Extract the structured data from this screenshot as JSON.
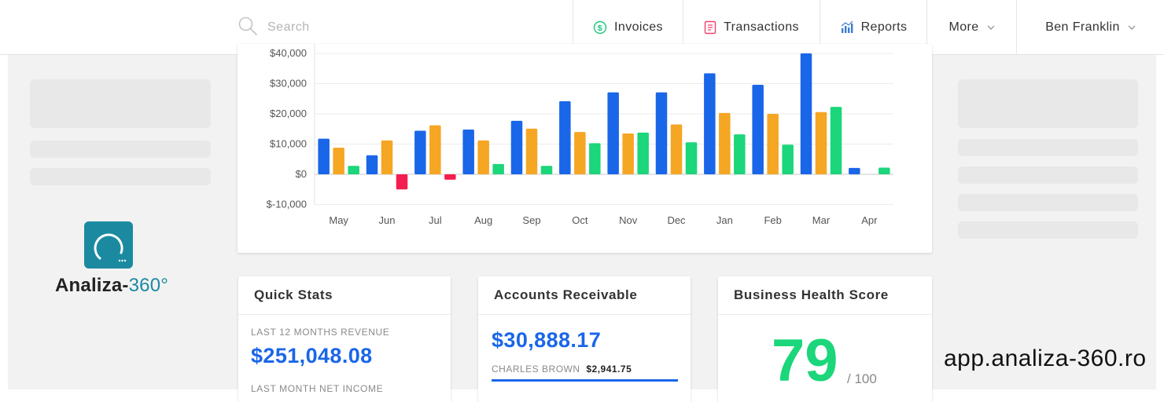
{
  "search": {
    "placeholder": "Search"
  },
  "nav": {
    "invoices": "Invoices",
    "transactions": "Transactions",
    "reports": "Reports",
    "more": "More",
    "user": "Ben Franklin"
  },
  "colors": {
    "blue": "#1a66e8",
    "orange": "#f5a623",
    "green": "#1bd67a",
    "red": "#f51d4f",
    "teal": "#1b8aa1"
  },
  "chart_data": {
    "type": "bar",
    "categories": [
      "May",
      "Jun",
      "Jul",
      "Aug",
      "Sep",
      "Oct",
      "Nov",
      "Dec",
      "Jan",
      "Feb",
      "Mar",
      "Apr"
    ],
    "series": [
      {
        "values": [
          11800,
          6300,
          14400,
          14800,
          17700,
          24200,
          27100,
          27100,
          33400,
          29600,
          40000,
          2100
        ]
      },
      {
        "values": [
          8800,
          11200,
          16200,
          11200,
          15100,
          14000,
          13500,
          16500,
          20300,
          20000,
          20600,
          0
        ]
      },
      {
        "values": [
          2800,
          -5000,
          -1800,
          3400,
          2800,
          10300,
          13800,
          10600,
          13200,
          9800,
          22300,
          2200
        ]
      }
    ],
    "yticks": [
      "$40,000",
      "$30,000",
      "$20,000",
      "$10,000",
      "$0",
      "$-10,000"
    ],
    "ylim": [
      -10000,
      40000
    ],
    "grid": true
  },
  "quick_stats": {
    "title": "Quick Stats",
    "revenue_label": "LAST 12 MONTHS REVENUE",
    "revenue_value": "$251,048.08",
    "net_income_label": "LAST MONTH NET INCOME"
  },
  "accounts_receivable": {
    "title": "Accounts Receivable",
    "value": "$30,888.17",
    "customer_name": "CHARLES BROWN",
    "customer_amount": "$2,941.75",
    "customer_fraction": 1.0
  },
  "health": {
    "title": "Business Health Score",
    "score": "79",
    "out_of": "/ 100"
  },
  "logo": {
    "name": "Analiza-",
    "suffix": "360°"
  },
  "watermark": "app.analiza-360.ro"
}
